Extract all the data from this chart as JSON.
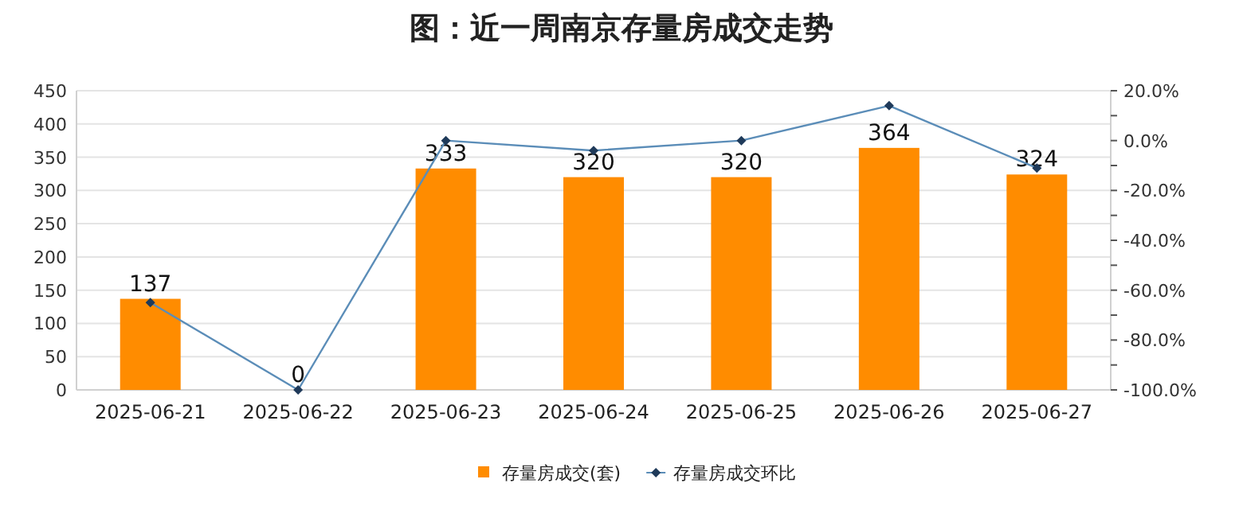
{
  "chart_data": {
    "type": "bar",
    "title": "图：近一周南京存量房成交走势",
    "categories": [
      "2025-06-21",
      "2025-06-22",
      "2025-06-23",
      "2025-06-24",
      "2025-06-25",
      "2025-06-26",
      "2025-06-27"
    ],
    "series": [
      {
        "name": "存量房成交(套)",
        "color": "#ff8c00",
        "values": [
          137,
          0,
          333,
          320,
          320,
          364,
          324
        ],
        "data_labels": true
      },
      {
        "name": "存量房成交环比",
        "type": "line",
        "axis": "y2",
        "color": "#5b8db8",
        "marker": "diamond",
        "values": [
          -65,
          -100,
          0,
          -4,
          0,
          14,
          -11
        ]
      }
    ],
    "ylim": [
      0,
      450
    ],
    "yticks": [
      0,
      50,
      100,
      150,
      200,
      250,
      300,
      350,
      400,
      450
    ],
    "y2lim": [
      -100,
      20
    ],
    "y2ticks": [
      {
        "value": 20,
        "label": "20.0%"
      },
      {
        "value": 10,
        "label": null
      },
      {
        "value": 0,
        "label": "0.0%"
      },
      {
        "value": -10,
        "label": null
      },
      {
        "value": -20,
        "label": "-20.0%"
      },
      {
        "value": -30,
        "label": null
      },
      {
        "value": -40,
        "label": "-40.0%"
      },
      {
        "value": -50,
        "label": null
      },
      {
        "value": -60,
        "label": "-60.0%"
      },
      {
        "value": -70,
        "label": null
      },
      {
        "value": -80,
        "label": "-80.0%"
      },
      {
        "value": -90,
        "label": null
      },
      {
        "value": -100,
        "label": "-100.0%"
      }
    ],
    "grid": "y",
    "legend": "bottom"
  }
}
